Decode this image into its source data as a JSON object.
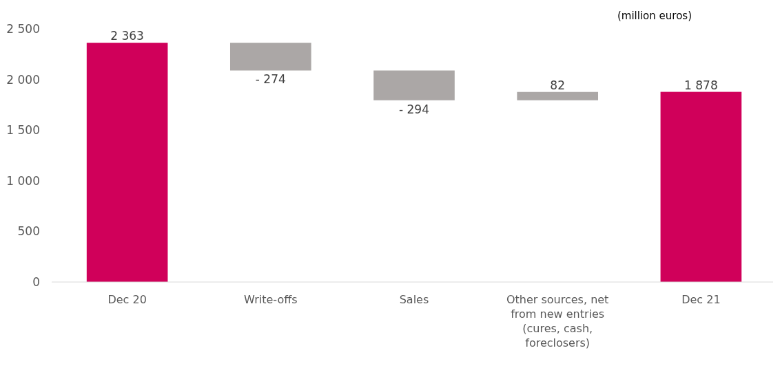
{
  "chart_data": {
    "type": "bar",
    "categories": [
      "Dec 20",
      "Write-offs",
      "Sales",
      "Other sources, net from new entries (cures, cash, foreclosers)",
      "Dec 21"
    ],
    "values": [
      2363,
      -274,
      -294,
      82,
      1878
    ],
    "base": [
      0,
      2363,
      2089,
      1795,
      0
    ],
    "colors": [
      "#d0005a",
      "#aba7a6",
      "#aba7a6",
      "#aba7a6",
      "#d0005a"
    ],
    "value_labels": [
      "2 363",
      "- 274",
      "- 294",
      "82",
      "1 878"
    ],
    "ylim": [
      0,
      2500
    ],
    "yticks": [
      {
        "value": 0,
        "label": "0"
      },
      {
        "value": 500,
        "label": "500"
      },
      {
        "value": 1000,
        "label": "1 000"
      },
      {
        "value": 1500,
        "label": "1 500"
      },
      {
        "value": 2000,
        "label": "2 000"
      },
      {
        "value": 2500,
        "label": "2 500"
      }
    ],
    "grid": false,
    "annotations": [
      "(million euros)"
    ]
  }
}
